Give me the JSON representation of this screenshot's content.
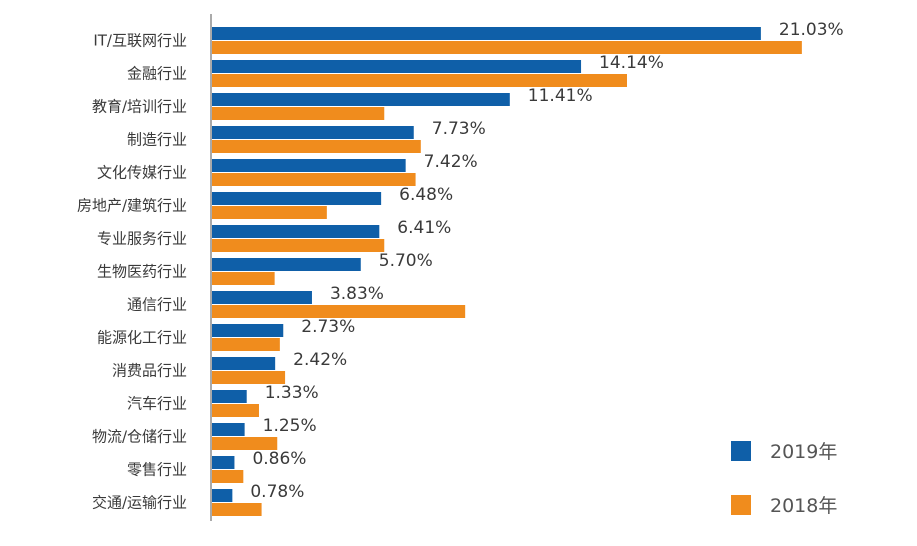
{
  "chart_data": {
    "type": "bar",
    "orientation": "horizontal",
    "categories": [
      "IT/互联网行业",
      "金融行业",
      "教育/培训行业",
      "制造行业",
      "文化传媒行业",
      "房地产/建筑行业",
      "专业服务行业",
      "生物医药行业",
      "通信行业",
      "能源化工行业",
      "消费品行业",
      "汽车行业",
      "物流/仓储行业",
      "零售行业",
      "交通/运输行业"
    ],
    "series": [
      {
        "name": "2019年",
        "color": "#0f5fa8",
        "values": [
          21.03,
          14.14,
          11.41,
          7.73,
          7.42,
          6.48,
          6.41,
          5.7,
          3.83,
          2.73,
          2.42,
          1.33,
          1.25,
          0.86,
          0.78
        ],
        "labels": [
          "21.03%",
          "14.14%",
          "11.41%",
          "7.73%",
          "7.42%",
          "6.48%",
          "6.41%",
          "5.70%",
          "3.83%",
          "2.73%",
          "2.42%",
          "1.33%",
          "1.25%",
          "0.86%",
          "0.78%"
        ]
      },
      {
        "name": "2018年",
        "color": "#f08c1d",
        "values": [
          22.6,
          15.9,
          6.6,
          8.0,
          7.8,
          4.4,
          6.6,
          2.4,
          9.7,
          2.6,
          2.8,
          1.8,
          2.5,
          1.2,
          1.9
        ]
      }
    ],
    "xlim": [
      0,
      24
    ],
    "legend": "bottom-right"
  }
}
